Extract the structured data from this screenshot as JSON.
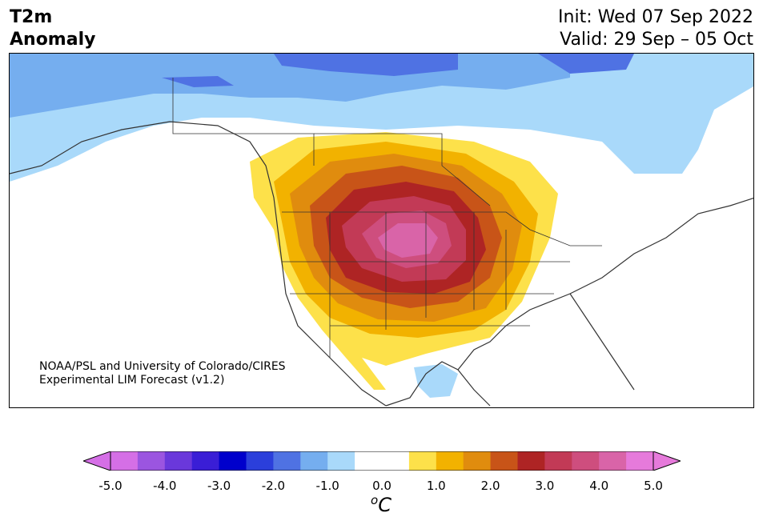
{
  "title": {
    "line1": "T2m",
    "line2": "Anomaly"
  },
  "init": {
    "label": "Init: Wed 07 Sep 2022"
  },
  "valid": {
    "label": "Valid: 29 Sep – 05 Oct"
  },
  "credit": {
    "line1": "NOAA/PSL and University of Colorado/CIRES",
    "line2": "Experimental LIM Forecast (v1.2)"
  },
  "colorbar": {
    "unit_base": "C",
    "unit_super": "o",
    "ticks": [
      "-5.0",
      "-4.0",
      "-3.0",
      "-2.0",
      "-1.0",
      "0.0",
      "1.0",
      "2.0",
      "3.0",
      "4.0",
      "5.0"
    ],
    "colors": [
      "#d56fe6",
      "#9b55e0",
      "#6a38db",
      "#3a1ed6",
      "#0000cc",
      "#2b3fdb",
      "#4f72e3",
      "#75aeef",
      "#a9d9fa",
      "#ffffff",
      "#ffffff",
      "#fde14a",
      "#f2b200",
      "#e08c0e",
      "#c85418",
      "#ae2424",
      "#c23a56",
      "#ce4e7e",
      "#d964a8",
      "#e67adb"
    ],
    "extend_low": "#d56fe6",
    "extend_high": "#e67adb"
  }
}
